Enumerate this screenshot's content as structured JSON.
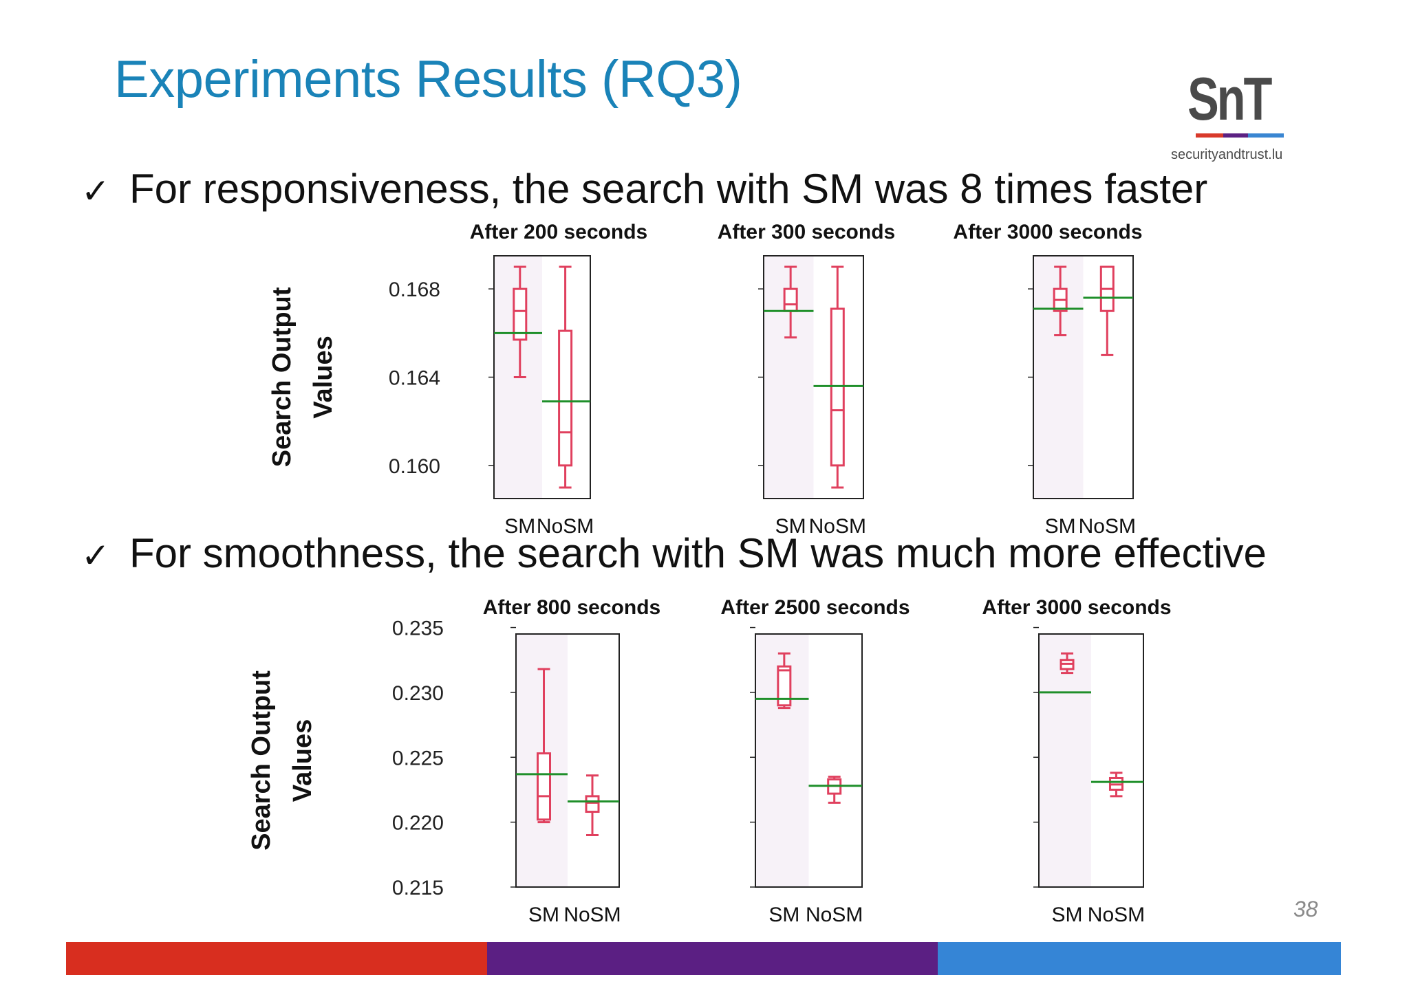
{
  "slide": {
    "title": "Experiments Results (RQ3)",
    "bullet1": "For responsiveness, the search with SM was 8 times faster",
    "bullet2": "For smoothness, the search with SM was much more effective",
    "check_glyph": "✓",
    "page_number": "38"
  },
  "logo": {
    "mark": "SnT",
    "url": "securityandtrust.lu"
  },
  "colors": {
    "title": "#1a83b8",
    "box": "#e0405e",
    "mean_line": "#1f8f2a",
    "footer": [
      "#d82e1f",
      "#5b1f83",
      "#3585d6"
    ]
  },
  "chart_data": [
    {
      "type": "boxplot",
      "ylabel": "Search Output Values",
      "ylim": [
        0.1585,
        0.1695
      ],
      "yticks": [
        "0.168",
        "0.164",
        "0.160"
      ],
      "ytick_values": [
        0.168,
        0.164,
        0.16
      ],
      "categories": [
        "SM",
        "NoSM"
      ],
      "panels": [
        {
          "title": "After 200 seconds",
          "boxes": [
            {
              "whisker_low": 0.164,
              "q1": 0.1657,
              "median": 0.167,
              "q3": 0.168,
              "whisker_high": 0.169,
              "mean": 0.166
            },
            {
              "whisker_low": 0.159,
              "q1": 0.16,
              "median": 0.1615,
              "q3": 0.1661,
              "whisker_high": 0.169,
              "mean": 0.1629
            }
          ]
        },
        {
          "title": "After 300 seconds",
          "boxes": [
            {
              "whisker_low": 0.1658,
              "q1": 0.167,
              "median": 0.1673,
              "q3": 0.168,
              "whisker_high": 0.169,
              "mean": 0.167
            },
            {
              "whisker_low": 0.159,
              "q1": 0.16,
              "median": 0.1625,
              "q3": 0.1671,
              "whisker_high": 0.169,
              "mean": 0.1636
            }
          ]
        },
        {
          "title": "After 3000 seconds",
          "boxes": [
            {
              "whisker_low": 0.1659,
              "q1": 0.167,
              "median": 0.1675,
              "q3": 0.168,
              "whisker_high": 0.169,
              "mean": 0.1671
            },
            {
              "whisker_low": 0.165,
              "q1": 0.167,
              "median": 0.168,
              "q3": 0.169,
              "whisker_high": 0.169,
              "mean": 0.1676
            }
          ]
        }
      ]
    },
    {
      "type": "boxplot",
      "ylabel": "Search Output Values",
      "ylim": [
        0.215,
        0.2345
      ],
      "yticks": [
        "0.235",
        "0.230",
        "0.225",
        "0.220",
        "0.215"
      ],
      "ytick_values": [
        0.235,
        0.23,
        0.225,
        0.22,
        0.215
      ],
      "categories": [
        "SM",
        "NoSM"
      ],
      "panels": [
        {
          "title": "After 800 seconds",
          "boxes": [
            {
              "whisker_low": 0.22,
              "q1": 0.2202,
              "median": 0.222,
              "q3": 0.2253,
              "whisker_high": 0.2318,
              "mean": 0.2237
            },
            {
              "whisker_low": 0.219,
              "q1": 0.2208,
              "median": 0.2215,
              "q3": 0.222,
              "whisker_high": 0.2236,
              "mean": 0.2216
            }
          ]
        },
        {
          "title": "After 2500 seconds",
          "boxes": [
            {
              "whisker_low": 0.2288,
              "q1": 0.229,
              "median": 0.2317,
              "q3": 0.232,
              "whisker_high": 0.233,
              "mean": 0.2295
            },
            {
              "whisker_low": 0.2215,
              "q1": 0.2222,
              "median": 0.2228,
              "q3": 0.2233,
              "whisker_high": 0.2235,
              "mean": 0.2228
            }
          ]
        },
        {
          "title": "After 3000 seconds",
          "boxes": [
            {
              "whisker_low": 0.2315,
              "q1": 0.2318,
              "median": 0.2322,
              "q3": 0.2325,
              "whisker_high": 0.233,
              "mean": 0.23
            },
            {
              "whisker_low": 0.222,
              "q1": 0.2225,
              "median": 0.2229,
              "q3": 0.2234,
              "whisker_high": 0.2238,
              "mean": 0.2231
            }
          ]
        }
      ]
    }
  ]
}
